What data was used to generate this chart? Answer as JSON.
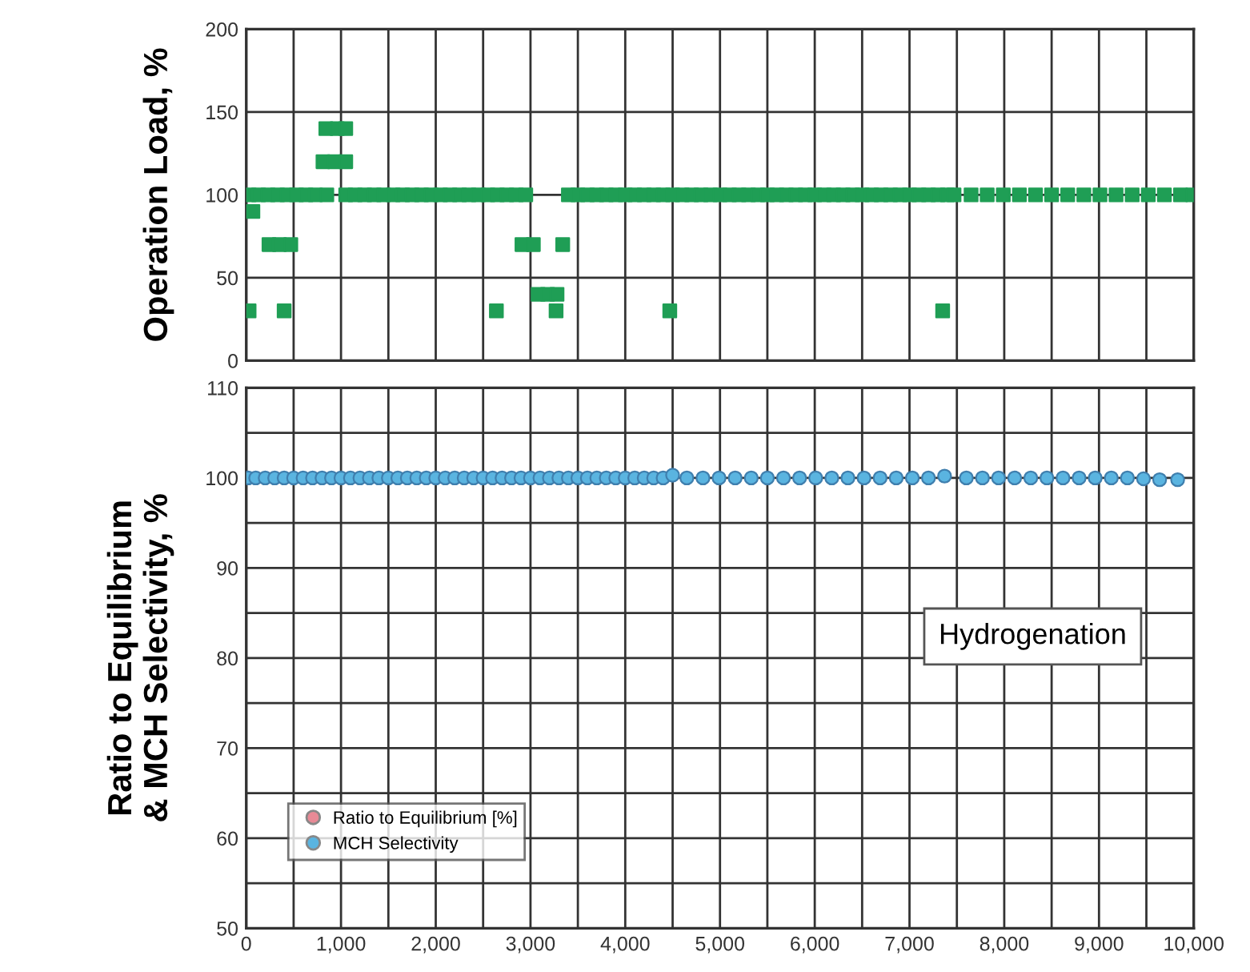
{
  "chart_data": [
    {
      "type": "scatter",
      "ylabel": "Operation Load, %",
      "xlim": [
        0,
        10000
      ],
      "ylim": [
        0,
        200
      ],
      "yticks": [
        0,
        50,
        100,
        150,
        200
      ],
      "xticks": [
        {
          "value": 0,
          "label": null
        },
        {
          "value": 500,
          "label": null
        },
        {
          "value": 1000,
          "label": null
        },
        {
          "value": 1500,
          "label": null
        },
        {
          "value": 2000,
          "label": null
        },
        {
          "value": 2500,
          "label": null
        },
        {
          "value": 3000,
          "label": null
        },
        {
          "value": 3500,
          "label": null
        },
        {
          "value": 4000,
          "label": null
        },
        {
          "value": 4500,
          "label": null
        },
        {
          "value": 5000,
          "label": null
        },
        {
          "value": 5500,
          "label": null
        },
        {
          "value": 6000,
          "label": null
        },
        {
          "value": 6500,
          "label": null
        },
        {
          "value": 7000,
          "label": null
        },
        {
          "value": 7500,
          "label": null
        },
        {
          "value": 8000,
          "label": null
        },
        {
          "value": 8500,
          "label": null
        },
        {
          "value": 9000,
          "label": null
        },
        {
          "value": 9500,
          "label": null
        },
        {
          "value": 10000,
          "label": null
        }
      ],
      "tick_labels": "y",
      "grid": true,
      "marker": "square",
      "legend": false,
      "series": [
        {
          "color": "#1f9e55",
          "x": [
            30,
            130,
            230,
            330,
            430,
            530,
            630,
            730,
            850,
            1050,
            1150,
            1250,
            1350,
            1450,
            1550,
            1650,
            1750,
            1850,
            1950,
            2050,
            2150,
            2250,
            2350,
            2450,
            2550,
            2650,
            2750,
            2850,
            2950,
            3400,
            3500,
            3600,
            3700,
            3800,
            3900,
            4000,
            4100,
            4200,
            4300,
            4400,
            4500,
            4600,
            4700,
            4800,
            4900,
            5000,
            5100,
            5200,
            5300,
            5400,
            5500,
            5600,
            5700,
            5800,
            5900,
            6000,
            6100,
            6200,
            6300,
            6400,
            6500,
            6600,
            6700,
            6800,
            6900,
            7000,
            7100,
            7200,
            7300,
            7400,
            7470,
            7650,
            7820,
            7990,
            8160,
            8330,
            8500,
            8670,
            8840,
            9010,
            9180,
            9350,
            9520,
            9690,
            9860,
            9990
          ],
          "values": [
            100,
            100,
            100,
            100,
            100,
            100,
            100,
            100,
            100,
            100,
            100,
            100,
            100,
            100,
            100,
            100,
            100,
            100,
            100,
            100,
            100,
            100,
            100,
            100,
            100,
            100,
            100,
            100,
            100,
            100,
            100,
            100,
            100,
            100,
            100,
            100,
            100,
            100,
            100,
            100,
            100,
            100,
            100,
            100,
            100,
            100,
            100,
            100,
            100,
            100,
            100,
            100,
            100,
            100,
            100,
            100,
            100,
            100,
            100,
            100,
            100,
            100,
            100,
            100,
            100,
            100,
            100,
            100,
            100,
            100,
            100,
            100,
            100,
            100,
            100,
            100,
            100,
            100,
            100,
            100,
            100,
            100,
            100,
            100,
            100,
            100
          ]
        },
        {
          "color": "#1f9e55",
          "x": [
            30,
            400,
            70,
            240,
            350,
            470,
            840,
            960,
            1050,
            810,
            930,
            1050,
            2640,
            2910,
            3030,
            3340,
            3080,
            3180,
            3280,
            3270,
            4470,
            7350
          ],
          "values": [
            30,
            30,
            90,
            70,
            70,
            70,
            140,
            140,
            140,
            120,
            120,
            120,
            30,
            70,
            70,
            70,
            40,
            40,
            40,
            30,
            30,
            30
          ]
        }
      ]
    },
    {
      "type": "scatter",
      "ylabel": "Ratio to Equilibrium\n& MCH Selectivity, %",
      "xlim": [
        0,
        10000
      ],
      "ylim": [
        50,
        110
      ],
      "yticks": [
        50,
        {
          "value": 55,
          "label": null
        },
        60,
        {
          "value": 65,
          "label": null
        },
        70,
        {
          "value": 75,
          "label": null
        },
        80,
        {
          "value": 85,
          "label": null
        },
        90,
        {
          "value": 95,
          "label": null
        },
        100,
        {
          "value": 105,
          "label": null
        },
        110
      ],
      "xticks": [
        0,
        {
          "value": 500,
          "label": null
        },
        {
          "value": 1000,
          "label": "1,000"
        },
        {
          "value": 1500,
          "label": null
        },
        {
          "value": 2000,
          "label": "2,000"
        },
        {
          "value": 2500,
          "label": null
        },
        {
          "value": 3000,
          "label": "3,000"
        },
        {
          "value": 3500,
          "label": null
        },
        {
          "value": 4000,
          "label": "4,000"
        },
        {
          "value": 4500,
          "label": null
        },
        {
          "value": 5000,
          "label": "5,000"
        },
        {
          "value": 5500,
          "label": null
        },
        {
          "value": 6000,
          "label": "6,000"
        },
        {
          "value": 6500,
          "label": null
        },
        {
          "value": 7000,
          "label": "7,000"
        },
        {
          "value": 7500,
          "label": null
        },
        {
          "value": 8000,
          "label": "8,000"
        },
        {
          "value": 8500,
          "label": null
        },
        {
          "value": 9000,
          "label": "9,000"
        },
        {
          "value": 9500,
          "label": null
        },
        {
          "value": 10000,
          "label": "10,000"
        }
      ],
      "grid": true,
      "marker": "circle",
      "legend": "bottom left",
      "annotations": [
        "Hydrogenation"
      ],
      "series": [
        {
          "name": "Ratio to Equilibrium [%]",
          "color": "#e88a96"
        },
        {
          "name": "MCH Selectivity",
          "color": "#5ab4e0",
          "x": [
            20,
            100,
            200,
            300,
            400,
            500,
            600,
            700,
            800,
            900,
            1000,
            1100,
            1200,
            1300,
            1400,
            1500,
            1600,
            1700,
            1800,
            1900,
            2000,
            2100,
            2200,
            2300,
            2400,
            2500,
            2600,
            2700,
            2800,
            2900,
            3000,
            3100,
            3200,
            3300,
            3400,
            3500,
            3600,
            3700,
            3800,
            3900,
            4000,
            4100,
            4200,
            4300,
            4400,
            4500,
            4650,
            4820,
            4990,
            5160,
            5330,
            5500,
            5670,
            5840,
            6010,
            6180,
            6350,
            6520,
            6690,
            6860,
            7030,
            7200,
            7370,
            7600,
            7770,
            7940,
            8110,
            8280,
            8450,
            8620,
            8790,
            8960,
            9130,
            9300,
            9470,
            9640,
            9830
          ],
          "values": [
            100,
            100,
            100,
            100,
            100,
            100,
            100,
            100,
            100,
            100,
            100,
            100,
            100,
            100,
            100,
            100,
            100,
            100,
            100,
            100,
            100,
            100,
            100,
            100,
            100,
            100,
            100,
            100,
            100,
            100,
            100,
            100,
            100,
            100,
            100,
            100,
            100,
            100,
            100,
            100,
            100,
            100,
            100,
            100,
            100,
            100.3,
            100,
            100,
            100,
            100,
            100,
            100,
            100,
            100,
            100,
            100,
            100,
            100,
            100,
            100,
            100,
            100,
            100.2,
            100,
            100,
            100,
            100,
            100,
            100,
            100,
            100,
            100,
            100,
            100,
            99.9,
            99.8,
            99.8
          ]
        }
      ]
    }
  ]
}
